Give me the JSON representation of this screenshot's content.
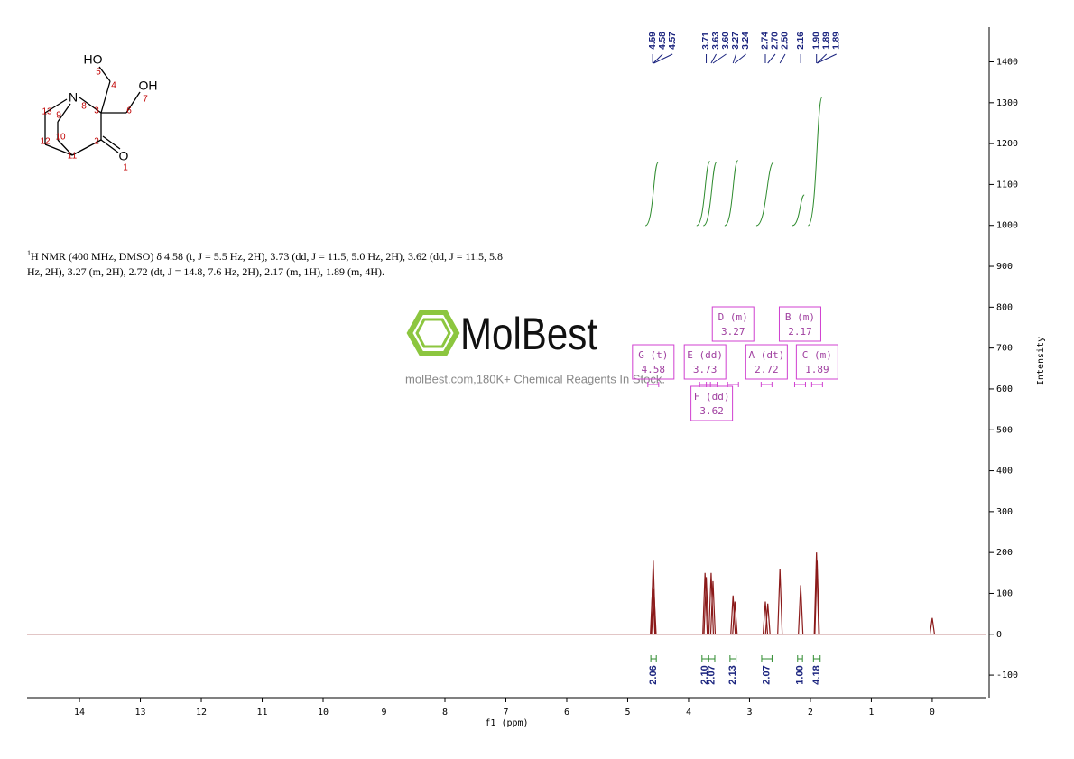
{
  "chart_data": {
    "type": "nmr",
    "x_label": "f1 (ppm)",
    "y_label": "Intensity",
    "xlim": [
      14.86,
      -0.89
    ],
    "xticks": [
      0,
      1,
      2,
      3,
      4,
      5,
      6,
      7,
      8,
      9,
      10,
      11,
      12,
      13,
      14
    ],
    "ylim": [
      -155,
      1485
    ],
    "yticks": [
      -100,
      0,
      100,
      200,
      300,
      400,
      500,
      600,
      700,
      800,
      900,
      1000,
      1100,
      1200,
      1300,
      1400
    ],
    "color": "#8b1a1a",
    "integral_color": "#2e8b2e",
    "label_color": "#1a237e",
    "peaks": {
      "x": [
        4.59,
        4.58,
        4.57,
        3.73,
        3.71,
        3.63,
        3.6,
        3.27,
        3.24,
        2.74,
        2.7,
        2.5,
        2.16,
        1.9,
        1.89,
        0
      ],
      "values": [
        120,
        180,
        110,
        150,
        140,
        150,
        130,
        95,
        80,
        80,
        75,
        160,
        120,
        200,
        180,
        40
      ]
    },
    "peak_labels": {
      "x": [
        4.59,
        4.58,
        4.57,
        3.71,
        3.63,
        3.6,
        3.27,
        3.24,
        2.74,
        2.7,
        2.5,
        2.16,
        1.9,
        1.89,
        1.89
      ],
      "value_labels": [
        "4.59",
        "4.58",
        "4.57",
        "3.71",
        "3.63",
        "3.60",
        "3.27",
        "3.24",
        "2.74",
        "2.70",
        "2.50",
        "2.16",
        "1.90",
        "1.89",
        "1.89"
      ]
    },
    "integrals": {
      "from": [
        4.62,
        3.78,
        3.67,
        3.32,
        2.8,
        2.21,
        1.95
      ],
      "to": [
        4.53,
        3.68,
        3.57,
        3.22,
        2.63,
        2.13,
        1.84
      ],
      "values": [
        2.06,
        2.1,
        2.07,
        2.13,
        2.07,
        1,
        4.18
      ],
      "value_labels": [
        "2.06",
        "2.10",
        "2.07",
        "2.13",
        "2.07",
        "1.00",
        "4.18"
      ]
    },
    "multiplets": {
      "labels": [
        "G (t)",
        "E (dd)",
        "F (dd)",
        "D (m)",
        "A (dt)",
        "B (m)",
        "C (m)"
      ],
      "shifts": [
        4.58,
        3.73,
        3.62,
        3.27,
        2.72,
        2.17,
        1.89
      ]
    }
  },
  "structure": {
    "atom_labels": [
      "HO",
      "OH",
      "N",
      "O"
    ],
    "atom_numbers": [
      1,
      2,
      3,
      4,
      5,
      6,
      7,
      8,
      9,
      10,
      11,
      12,
      13
    ]
  },
  "description": {
    "superscript": "1",
    "text": "H NMR (400 MHz, DMSO) δ 4.58 (t, J = 5.5 Hz, 2H), 3.73 (dd, J = 11.5, 5.0 Hz, 2H), 3.62 (dd, J = 11.5, 5.8 Hz, 2H), 3.27 (m, 2H), 2.72 (dt, J = 14.8, 7.6 Hz, 2H), 2.17 (m, 1H), 1.89 (m, 4H)."
  },
  "watermark": {
    "brand": "MolBest",
    "tagline": "molBest.com,180K+ Chemical Reagents In Stock."
  }
}
